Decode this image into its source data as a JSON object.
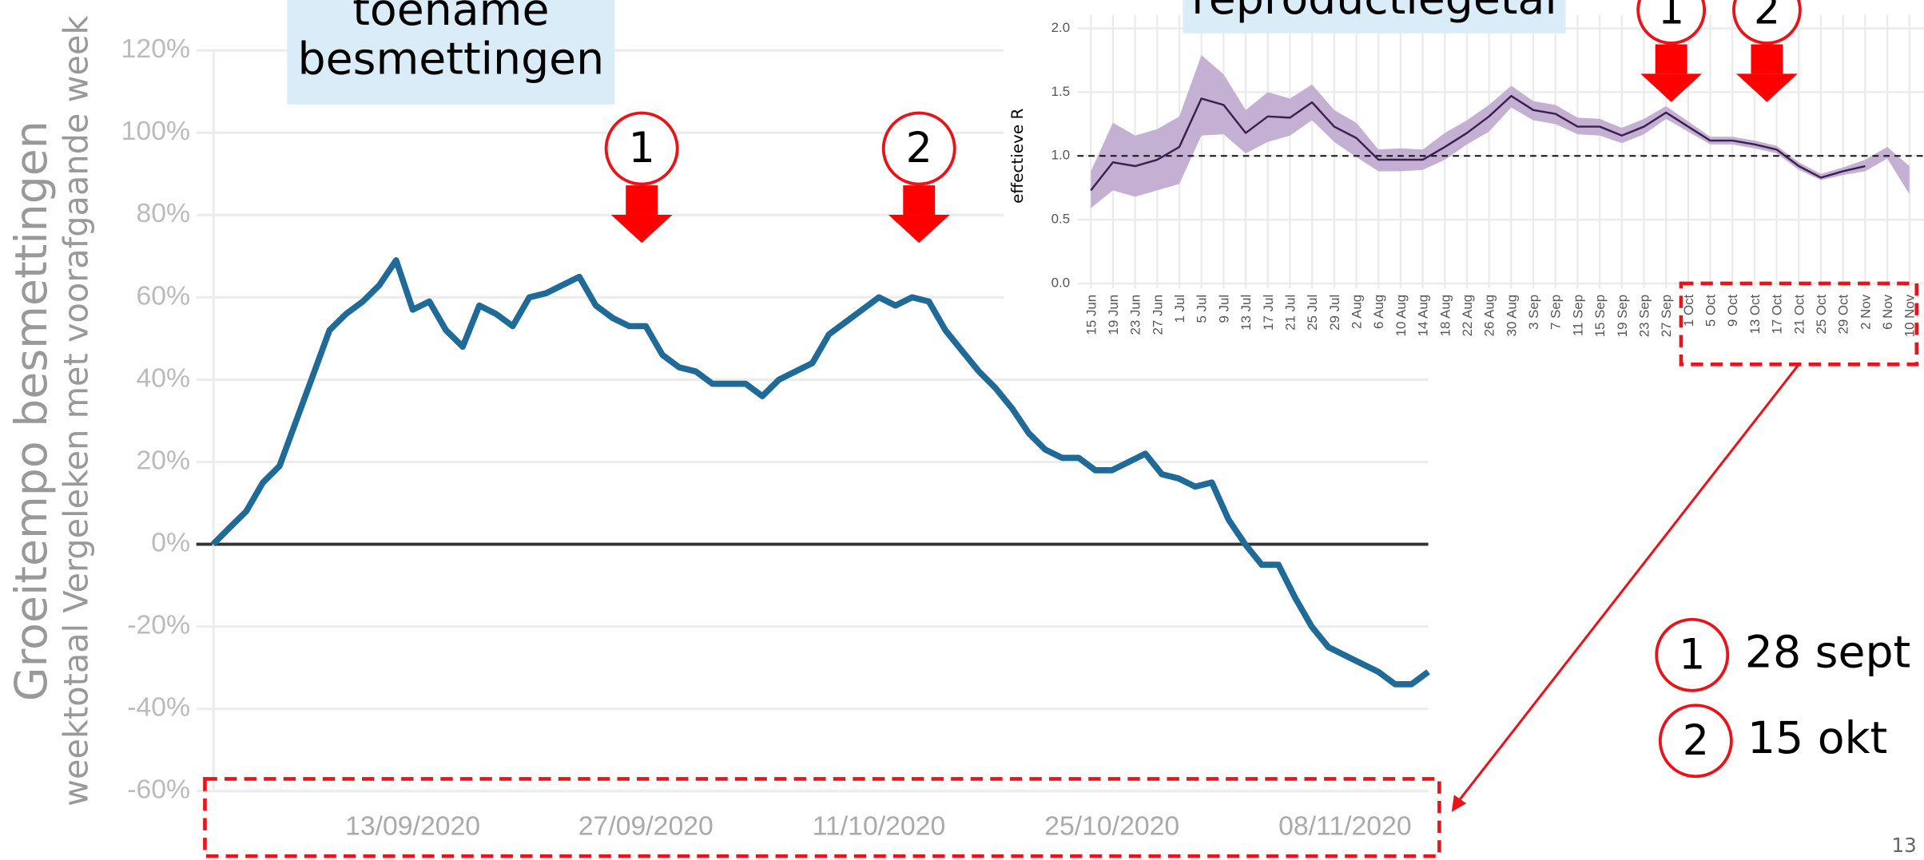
{
  "chart_data": [
    {
      "type": "line",
      "title": "toename besmettingen",
      "ylabel": "Groeitempo besmettingen",
      "ylabel_sub": "weektotaal Vergeleken met voorafgaande week",
      "color": "#1f6a96",
      "x": [
        "2020-09-01",
        "2020-09-02",
        "2020-09-03",
        "2020-09-04",
        "2020-09-05",
        "2020-09-06",
        "2020-09-07",
        "2020-09-08",
        "2020-09-09",
        "2020-09-10",
        "2020-09-11",
        "2020-09-12",
        "2020-09-13",
        "2020-09-14",
        "2020-09-15",
        "2020-09-16",
        "2020-09-17",
        "2020-09-18",
        "2020-09-19",
        "2020-09-20",
        "2020-09-21",
        "2020-09-22",
        "2020-09-23",
        "2020-09-24",
        "2020-09-25",
        "2020-09-26",
        "2020-09-27",
        "2020-09-28",
        "2020-09-29",
        "2020-09-30",
        "2020-10-01",
        "2020-10-02",
        "2020-10-03",
        "2020-10-04",
        "2020-10-05",
        "2020-10-06",
        "2020-10-07",
        "2020-10-08",
        "2020-10-09",
        "2020-10-10",
        "2020-10-11",
        "2020-10-12",
        "2020-10-13",
        "2020-10-14",
        "2020-10-15",
        "2020-10-16",
        "2020-10-17",
        "2020-10-18",
        "2020-10-19",
        "2020-10-20",
        "2020-10-21",
        "2020-10-22",
        "2020-10-23",
        "2020-10-24",
        "2020-10-25",
        "2020-10-26",
        "2020-10-27",
        "2020-10-28",
        "2020-10-29",
        "2020-10-30",
        "2020-10-31",
        "2020-11-01",
        "2020-11-02",
        "2020-11-03",
        "2020-11-04",
        "2020-11-05",
        "2020-11-06",
        "2020-11-07",
        "2020-11-08",
        "2020-11-09",
        "2020-11-10",
        "2020-11-11",
        "2020-11-12",
        "2020-11-13"
      ],
      "values": [
        0,
        4,
        8,
        15,
        19,
        30,
        41,
        52,
        56,
        59,
        63,
        69,
        57,
        59,
        52,
        48,
        58,
        56,
        53,
        60,
        61,
        63,
        65,
        58,
        55,
        53,
        53,
        46,
        43,
        42,
        39,
        39,
        39,
        36,
        40,
        42,
        44,
        51,
        54,
        57,
        60,
        58,
        60,
        59,
        52,
        47,
        42,
        38,
        33,
        27,
        23,
        21,
        21,
        18,
        18,
        20,
        22,
        17,
        16,
        14,
        15,
        6,
        0,
        -5,
        -5,
        -13,
        -20,
        -25,
        -27,
        -29,
        -31,
        -34,
        -34,
        -31
      ],
      "xlim": [
        "2020-08-31",
        "2020-11-13"
      ],
      "xticks": [
        {
          "value": "2020-09-13",
          "label": "13/09/2020"
        },
        {
          "value": "2020-09-27",
          "label": "27/09/2020"
        },
        {
          "value": "2020-10-11",
          "label": "11/10/2020"
        },
        {
          "value": "2020-10-25",
          "label": "25/10/2020"
        },
        {
          "value": "2020-11-08",
          "label": "08/11/2020"
        }
      ],
      "ylim": [
        -60,
        120
      ],
      "yticks": [
        {
          "value": -60,
          "label": "-60%"
        },
        {
          "value": -40,
          "label": "-40%"
        },
        {
          "value": -20,
          "label": "-20%"
        },
        {
          "value": 0,
          "label": "0%"
        },
        {
          "value": 20,
          "label": "20%"
        },
        {
          "value": 40,
          "label": "40%"
        },
        {
          "value": 60,
          "label": "60%"
        },
        {
          "value": 80,
          "label": "80%"
        },
        {
          "value": 100,
          "label": "100%"
        },
        {
          "value": 120,
          "label": "120%"
        }
      ],
      "grid": true
    },
    {
      "type": "line",
      "title": "reproductiegetal",
      "ylabel": "effectieve R",
      "color": "#3b2050",
      "band_color": "#c4b0d3",
      "categories": [
        "15 Jun",
        "19 Jun",
        "23 Jun",
        "27 Jun",
        "1 Jul",
        "5 Jul",
        "9 Jul",
        "13 Jul",
        "17 Jul",
        "21 Jul",
        "25 Jul",
        "29 Jul",
        "2 Aug",
        "6 Aug",
        "10 Aug",
        "14 Aug",
        "18 Aug",
        "22 Aug",
        "26 Aug",
        "30 Aug",
        "3 Sep",
        "7 Sep",
        "11 Sep",
        "15 Sep",
        "19 Sep",
        "23 Sep",
        "27 Sep",
        "1 Oct",
        "5 Oct",
        "9 Oct",
        "13 Oct",
        "17 Oct",
        "21 Oct",
        "25 Oct",
        "29 Oct",
        "2 Nov",
        "6 Nov",
        "10 Nov"
      ],
      "values": [
        0.73,
        0.95,
        0.92,
        0.97,
        1.07,
        1.45,
        1.4,
        1.18,
        1.31,
        1.3,
        1.42,
        1.23,
        1.14,
        0.97,
        0.97,
        0.97,
        1.07,
        1.18,
        1.31,
        1.47,
        1.36,
        1.33,
        1.23,
        1.23,
        1.16,
        1.23,
        1.34,
        1.23,
        1.12,
        1.12,
        1.09,
        1.05,
        0.92,
        0.83,
        0.88,
        0.92,
        null,
        null
      ],
      "lower": [
        0.59,
        0.73,
        0.68,
        0.73,
        0.78,
        1.16,
        1.17,
        1.02,
        1.11,
        1.16,
        1.28,
        1.11,
        0.99,
        0.88,
        0.88,
        0.89,
        0.97,
        1.09,
        1.19,
        1.38,
        1.28,
        1.25,
        1.17,
        1.16,
        1.1,
        1.17,
        1.29,
        1.19,
        1.09,
        1.09,
        1.06,
        1.02,
        0.89,
        0.81,
        0.85,
        0.88,
        0.98,
        0.7
      ],
      "upper": [
        0.88,
        1.26,
        1.16,
        1.21,
        1.31,
        1.79,
        1.64,
        1.36,
        1.5,
        1.45,
        1.56,
        1.36,
        1.26,
        1.05,
        1.06,
        1.05,
        1.18,
        1.28,
        1.4,
        1.55,
        1.43,
        1.4,
        1.3,
        1.29,
        1.22,
        1.29,
        1.39,
        1.27,
        1.15,
        1.15,
        1.12,
        1.08,
        0.95,
        0.86,
        0.91,
        0.97,
        1.07,
        0.92
      ],
      "hline": 1,
      "ylim": [
        0,
        2
      ],
      "yticks": [
        {
          "value": 0,
          "label": "0.0"
        },
        {
          "value": 0.5,
          "label": "0.5"
        },
        {
          "value": 1,
          "label": "1.0"
        },
        {
          "value": 1.5,
          "label": "1.5"
        },
        {
          "value": 2,
          "label": "2.0"
        }
      ],
      "grid": true
    }
  ],
  "markers": [
    {
      "label": "1",
      "date": "28 sept"
    },
    {
      "label": "2",
      "date": "15 okt"
    }
  ],
  "page_number": "13"
}
